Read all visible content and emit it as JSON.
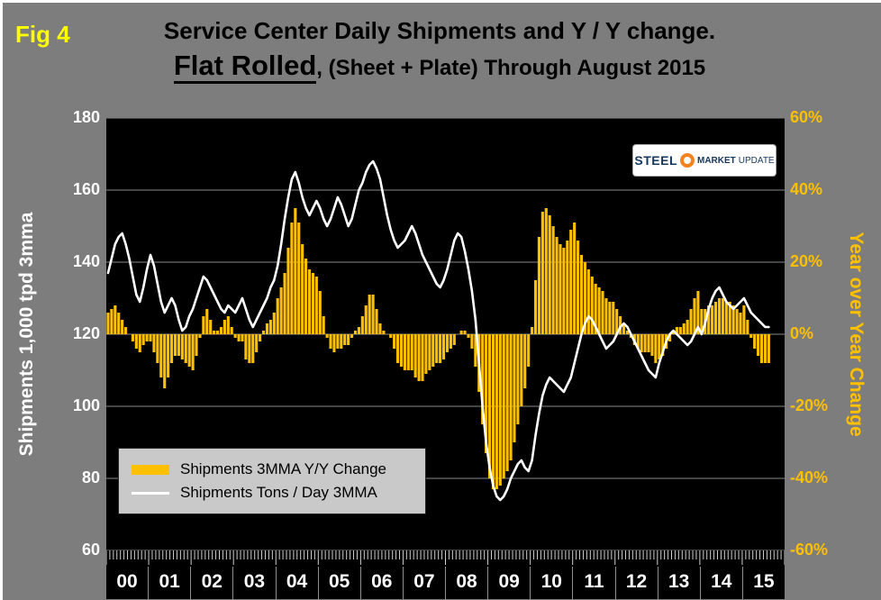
{
  "figure": {
    "fig_label": "Fig 4",
    "title_line1": "Service Center Daily Shipments and Y / Y change.",
    "title_line2_emphasis": "Flat Rolled",
    "title_line2_rest": ", (Sheet + Plate) Through August 2015"
  },
  "logo": {
    "steel": "STEEL",
    "market": "MARKET",
    "update": "UPDATE"
  },
  "legend": {
    "bar_label": "Shipments 3MMA Y/Y Change",
    "line_label": "Shipments Tons / Day 3MMA"
  },
  "colors": {
    "page_bg": "#7d7d7d",
    "plot_bg": "#000000",
    "bar": "#FFC000",
    "line": "#FFFFFF",
    "grid": "#8a8a8a",
    "right_axis_text": "#FFC000",
    "fig_label": "#FFFF00",
    "tick_comb": "#cfcfcf"
  },
  "chart_data": {
    "type": "bar+line",
    "title": "Service Center Daily Shipments and Y / Y change. Flat Rolled, (Sheet + Plate) Through August 2015",
    "x_start": "2000-01",
    "x_end": "2015-08",
    "total_month_slots": 192,
    "x_labels": [
      "00",
      "01",
      "02",
      "03",
      "04",
      "05",
      "06",
      "07",
      "08",
      "09",
      "10",
      "11",
      "12",
      "13",
      "14",
      "15"
    ],
    "left_axis": {
      "title": "Shipments 1,000 tpd 3mma",
      "min": 60,
      "max": 180,
      "step": 20,
      "tick_labels": [
        "180",
        "160",
        "140",
        "120",
        "100",
        "80",
        "60"
      ]
    },
    "right_axis": {
      "title": "Year over Year Change",
      "min": -60,
      "max": 60,
      "step": 20,
      "unit": "%",
      "tick_labels": [
        "60%",
        "40%",
        "20%",
        "0%",
        "-20%",
        "-40%",
        "-60%"
      ]
    },
    "grid": true,
    "legend_position": "lower-left",
    "series": [
      {
        "name": "Shipments 3MMA Y/Y Change",
        "type": "bar",
        "axis": "right",
        "color": "#FFC000",
        "values": [
          6,
          7,
          8,
          6,
          4,
          2,
          0,
          -2,
          -4,
          -5,
          -3,
          -2,
          -2,
          -5,
          -8,
          -12,
          -15,
          -12,
          -8,
          -6,
          -6,
          -7,
          -8,
          -9,
          -10,
          -6,
          -1,
          5,
          7,
          4,
          1,
          1,
          2,
          4,
          5,
          2,
          -1,
          -2,
          -2,
          -7,
          -8,
          -8,
          -5,
          -2,
          1,
          3,
          4,
          6,
          10,
          13,
          17,
          24,
          31,
          35,
          31,
          25,
          21,
          18,
          17,
          16,
          12,
          5,
          -1,
          -4,
          -5,
          -4,
          -4,
          -3,
          -3,
          -1,
          1,
          2,
          5,
          8,
          11,
          11,
          7,
          3,
          1,
          0,
          -1,
          -4,
          -8,
          -9,
          -10,
          -10,
          -10,
          -12,
          -13,
          -13,
          -11,
          -10,
          -9,
          -8,
          -8,
          -7,
          -5,
          -4,
          -3,
          0,
          1,
          1,
          -1,
          -4,
          -9,
          -16,
          -25,
          -33,
          -40,
          -43,
          -43,
          -42,
          -40,
          -38,
          -35,
          -30,
          -25,
          -20,
          -15,
          -9,
          2,
          15,
          27,
          34,
          35,
          33,
          30,
          27,
          25,
          24,
          26,
          29,
          31,
          26,
          22,
          20,
          18,
          16,
          14,
          13,
          12,
          10,
          9,
          9,
          7,
          5,
          3,
          1,
          -1,
          -3,
          -4,
          -5,
          -5,
          -5,
          -6,
          -8,
          -7,
          -6,
          -4,
          -2,
          1,
          2,
          2,
          3,
          4,
          7,
          10,
          12,
          7,
          7,
          8,
          8,
          9,
          10,
          10,
          9,
          9,
          8,
          7,
          6,
          8,
          4,
          -1,
          -4,
          -6,
          -8,
          -8,
          -8
        ]
      },
      {
        "name": "Shipments Tons / Day 3MMA",
        "type": "line",
        "axis": "left",
        "color": "#FFFFFF",
        "values": [
          137,
          141,
          145,
          147,
          148,
          145,
          141,
          136,
          131,
          129,
          133,
          138,
          142,
          139,
          134,
          129,
          126,
          128,
          130,
          128,
          124,
          121,
          122,
          125,
          127,
          130,
          133,
          136,
          135,
          133,
          131,
          129,
          127,
          126,
          128,
          127,
          126,
          128,
          130,
          127,
          124,
          122,
          124,
          126,
          128,
          130,
          133,
          135,
          139,
          145,
          152,
          158,
          163,
          165,
          162,
          158,
          155,
          153,
          155,
          157,
          155,
          152,
          150,
          152,
          155,
          158,
          156,
          153,
          150,
          152,
          156,
          160,
          162,
          165,
          167,
          168,
          166,
          163,
          158,
          153,
          149,
          146,
          144,
          145,
          146,
          148,
          150,
          148,
          145,
          142,
          140,
          138,
          136,
          134,
          133,
          135,
          138,
          142,
          146,
          148,
          147,
          143,
          138,
          132,
          124,
          112,
          100,
          90,
          83,
          78,
          75,
          74,
          75,
          77,
          80,
          82,
          84,
          85,
          83,
          82,
          85,
          92,
          98,
          103,
          106,
          108,
          107,
          106,
          105,
          104,
          106,
          108,
          112,
          116,
          120,
          123,
          125,
          124,
          122,
          120,
          118,
          116,
          117,
          118,
          120,
          122,
          123,
          122,
          120,
          118,
          116,
          114,
          112,
          110,
          109,
          108,
          112,
          115,
          118,
          120,
          121,
          120,
          119,
          118,
          117,
          118,
          120,
          122,
          120,
          123,
          127,
          130,
          132,
          133,
          131,
          129,
          128,
          127,
          128,
          129,
          130,
          128,
          126,
          125,
          124,
          123,
          122,
          122
        ]
      }
    ]
  }
}
